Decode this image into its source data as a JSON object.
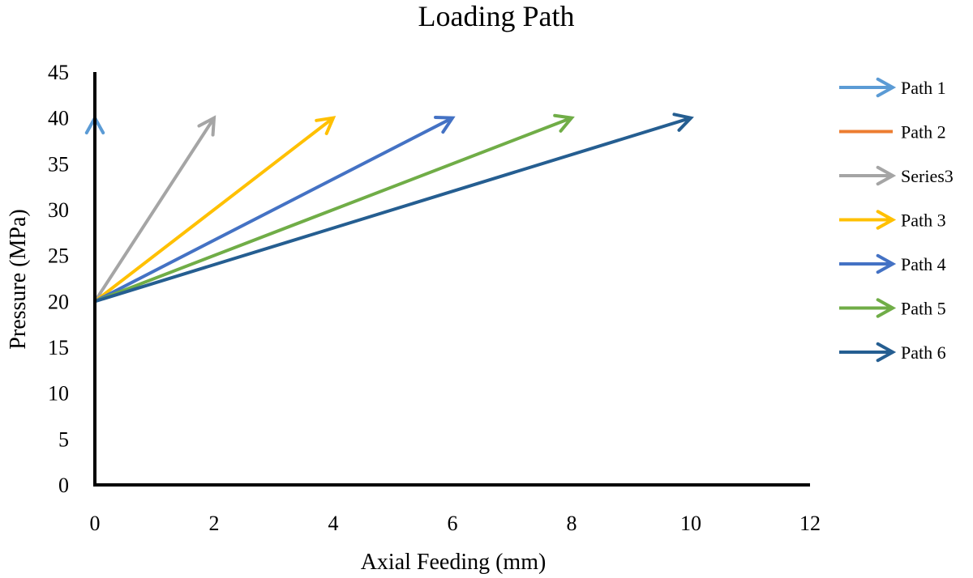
{
  "chart_data": {
    "type": "line",
    "title": "Loading Path",
    "xlabel": "Axial Feeding (mm)",
    "ylabel": "Pressure (MPa)",
    "xlim": [
      0,
      12
    ],
    "ylim": [
      0,
      45
    ],
    "xticks": [
      "0",
      "2",
      "4",
      "6",
      "8",
      "10",
      "12"
    ],
    "yticks": [
      "0",
      "5",
      "10",
      "15",
      "20",
      "25",
      "30",
      "35",
      "40",
      "45"
    ],
    "grid": false,
    "legend_position": "right",
    "series": [
      {
        "name": "Path 1",
        "color": "#5B9BD5",
        "arrow": true,
        "points": [
          [
            0,
            0
          ],
          [
            0,
            40
          ]
        ]
      },
      {
        "name": "Path 2",
        "color": "#ED7D31",
        "arrow": false,
        "points": []
      },
      {
        "name": "Series3",
        "color": "#A5A5A5",
        "arrow": true,
        "points": [
          [
            0,
            0
          ],
          [
            0,
            20
          ],
          [
            2,
            40
          ]
        ]
      },
      {
        "name": "Path 3",
        "color": "#FFC000",
        "arrow": true,
        "points": [
          [
            0,
            0
          ],
          [
            0,
            20
          ],
          [
            4,
            40
          ]
        ]
      },
      {
        "name": "Path 4",
        "color": "#4472C4",
        "arrow": true,
        "points": [
          [
            0,
            0
          ],
          [
            0,
            20
          ],
          [
            6,
            40
          ]
        ]
      },
      {
        "name": "Path 5",
        "color": "#70AD47",
        "arrow": true,
        "points": [
          [
            0,
            0
          ],
          [
            0,
            20
          ],
          [
            8,
            40
          ]
        ]
      },
      {
        "name": "Path 6",
        "color": "#255E91",
        "arrow": true,
        "points": [
          [
            0,
            0
          ],
          [
            0,
            20
          ],
          [
            10,
            40
          ]
        ]
      }
    ]
  }
}
